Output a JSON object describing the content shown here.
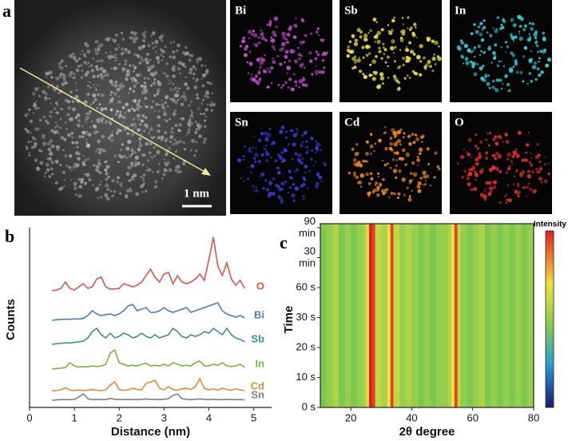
{
  "panel_a": {
    "label": "a",
    "scale_bar": "1 nm",
    "maps": [
      {
        "element": "Bi",
        "color": "#c04ec8"
      },
      {
        "element": "Sb",
        "color": "#e6e04a"
      },
      {
        "element": "In",
        "color": "#3ad0d8"
      },
      {
        "element": "Sn",
        "color": "#3c3cd8"
      },
      {
        "element": "Cd",
        "color": "#f08a28"
      },
      {
        "element": "O",
        "color": "#e03030"
      }
    ]
  },
  "chart_data": [
    {
      "type": "line",
      "panel": "b",
      "xlabel": "Distance (nm)",
      "ylabel": "Counts",
      "xlim": [
        0,
        5.4
      ],
      "xticks": [
        0,
        1,
        2,
        3,
        4,
        5
      ],
      "x": [
        0.5,
        0.6,
        0.7,
        0.8,
        0.9,
        1.0,
        1.1,
        1.2,
        1.3,
        1.4,
        1.5,
        1.6,
        1.7,
        1.8,
        1.9,
        2.0,
        2.1,
        2.2,
        2.3,
        2.4,
        2.5,
        2.6,
        2.7,
        2.8,
        2.9,
        3.0,
        3.1,
        3.2,
        3.3,
        3.4,
        3.5,
        3.6,
        3.7,
        3.8,
        3.9,
        4.0,
        4.1,
        4.2,
        4.3,
        4.4,
        4.5,
        4.6,
        4.7,
        4.8
      ],
      "series": [
        {
          "name": "O",
          "color": "#d9534f",
          "values": [
            0.3,
            0.5,
            1,
            3,
            1,
            0.5,
            1.5,
            2.5,
            1,
            1.5,
            4,
            4.5,
            1.5,
            0.8,
            0.8,
            1,
            2.5,
            2,
            1.5,
            2,
            3,
            5,
            7,
            4.5,
            3,
            5.5,
            6,
            2.5,
            5,
            3,
            2.5,
            3,
            4,
            5.5,
            3.5,
            10,
            17,
            8,
            5,
            9,
            4,
            2,
            3.5,
            1
          ]
        },
        {
          "name": "Bi",
          "color": "#4a7fb5",
          "values": [
            0,
            0.2,
            0.3,
            0.4,
            0.3,
            0.5,
            0.4,
            0.6,
            1.5,
            3,
            2,
            1.5,
            1.8,
            2,
            1.5,
            2,
            3,
            4.5,
            5,
            3,
            3.5,
            4,
            2.5,
            2.5,
            3,
            4,
            3,
            2.5,
            3,
            3.5,
            4,
            2.5,
            3,
            3.5,
            4,
            4.5,
            5,
            5.5,
            3,
            2,
            1.5,
            1,
            1.5,
            0.8
          ]
        },
        {
          "name": "Sb",
          "color": "#3d8f8a",
          "values": [
            0,
            0.2,
            0.3,
            0.5,
            0.4,
            0.6,
            0.8,
            1,
            2,
            4,
            5,
            3,
            2,
            3.5,
            2,
            2.5,
            3.5,
            3,
            2,
            2.5,
            3.5,
            2.5,
            2,
            3,
            2,
            2.5,
            3,
            5,
            4,
            2.5,
            2,
            3,
            2.5,
            3,
            4,
            3.5,
            5,
            4,
            3,
            5,
            3,
            2,
            1.5,
            0.8
          ]
        },
        {
          "name": "In",
          "color": "#7bb33a",
          "values": [
            0,
            0.2,
            0.3,
            0.5,
            2,
            1,
            0.6,
            0.8,
            0.7,
            1,
            0.8,
            1,
            1.5,
            5,
            6,
            2,
            1.5,
            1,
            1.2,
            1,
            1.5,
            1.8,
            1,
            1.2,
            1,
            1.5,
            1,
            2,
            1.5,
            1,
            1.2,
            1,
            2,
            2.5,
            1,
            1,
            1.5,
            1.2,
            2,
            1,
            0.8,
            1,
            1.5,
            0.5
          ]
        },
        {
          "name": "Cd",
          "color": "#e8893a",
          "values": [
            0.2,
            0.3,
            0.5,
            1.2,
            0.4,
            0.3,
            0.5,
            0.3,
            0.4,
            0.6,
            0.4,
            0.3,
            0.5,
            2,
            3,
            0.6,
            0.4,
            0.5,
            1,
            0.6,
            0.5,
            2.5,
            3,
            3.5,
            1,
            0.5,
            1.5,
            0.6,
            0.4,
            0.8,
            1,
            0.6,
            1.5,
            4,
            1,
            0.5,
            0.8,
            0.4,
            1,
            0.6,
            0.4,
            0.8,
            0.5,
            0.3
          ]
        },
        {
          "name": "Sn",
          "color": "#808080",
          "values": [
            0,
            0.1,
            0.2,
            0.2,
            0.2,
            0.3,
            1,
            2,
            0.5,
            0.2,
            0.3,
            0.2,
            0.2,
            0.6,
            0.3,
            0.2,
            0.2,
            0.3,
            0.2,
            0.2,
            0.3,
            0.4,
            0.3,
            0.3,
            0.2,
            0.3,
            0.5,
            1.5,
            2,
            0.5,
            0.3,
            0.2,
            0.3,
            0.4,
            0.3,
            0.2,
            0.3,
            0.2,
            0.2,
            0.3,
            0.2,
            0.2,
            0.2,
            0.1
          ]
        }
      ]
    },
    {
      "type": "heatmap",
      "panel": "c",
      "xlabel": "2θ degree",
      "ylabel": "Time",
      "colorbar_label": "Intensity",
      "xlim": [
        10,
        80
      ],
      "xticks": [
        20,
        40,
        60,
        80
      ],
      "categories": [
        "0 s",
        "10 s",
        "20 s",
        "30 s",
        "60 s",
        "30 min",
        "90 min"
      ],
      "x": [
        10,
        12,
        14,
        16,
        18,
        20,
        22,
        24,
        25,
        26,
        27,
        28,
        30,
        32,
        33,
        34,
        36,
        38,
        40,
        42,
        44,
        46,
        48,
        50,
        52,
        53,
        54,
        55,
        56,
        58,
        60,
        62,
        64,
        66,
        68,
        70,
        72,
        74,
        76,
        78
      ],
      "values": [
        0.45,
        0.5,
        0.55,
        0.45,
        0.5,
        0.45,
        0.5,
        0.55,
        0.65,
        1,
        0.95,
        0.6,
        0.55,
        0.7,
        0.95,
        0.6,
        0.5,
        0.55,
        0.5,
        0.45,
        0.5,
        0.45,
        0.5,
        0.5,
        0.55,
        0.7,
        0.95,
        0.6,
        0.5,
        0.45,
        0.5,
        0.55,
        0.45,
        0.5,
        0.45,
        0.5,
        0.45,
        0.5,
        0.45,
        0.5
      ]
    }
  ]
}
